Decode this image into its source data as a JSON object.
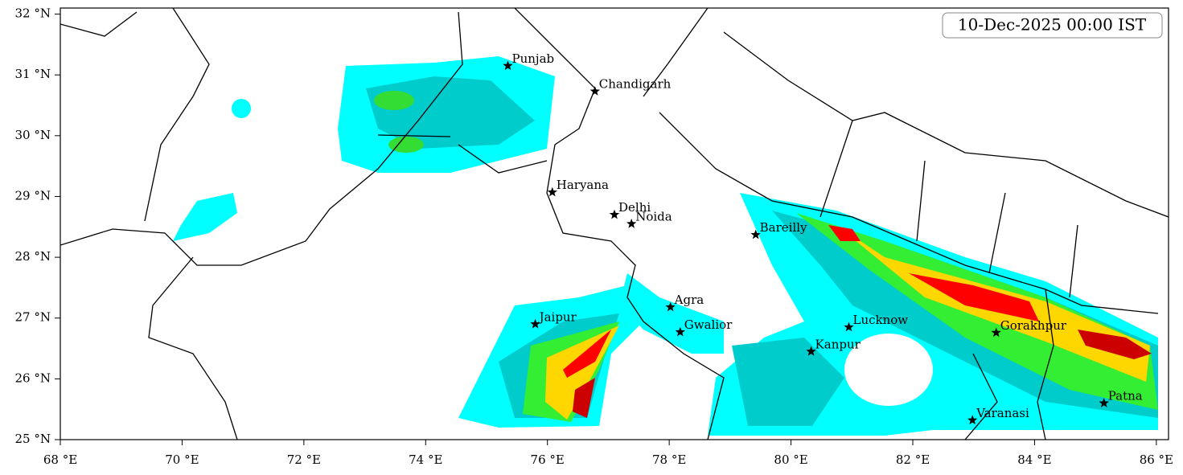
{
  "map": {
    "date_label": "10-Dec-2025 00:00 IST",
    "xlim": [
      68,
      86.2
    ],
    "ylim": [
      25,
      32.1
    ],
    "xticks": [
      {
        "value": 68,
        "label": "68 °E"
      },
      {
        "value": 70,
        "label": "70 °E"
      },
      {
        "value": 72,
        "label": "72 °E"
      },
      {
        "value": 74,
        "label": "74 °E"
      },
      {
        "value": 76,
        "label": "76 °E"
      },
      {
        "value": 78,
        "label": "78 °E"
      },
      {
        "value": 80,
        "label": "80 °E"
      },
      {
        "value": 82,
        "label": "82 °E"
      },
      {
        "value": 84,
        "label": "84 °E"
      },
      {
        "value": 86,
        "label": "86 °E"
      }
    ],
    "yticks": [
      {
        "value": 25,
        "label": "25 °N"
      },
      {
        "value": 26,
        "label": "26 °N"
      },
      {
        "value": 27,
        "label": "27 °N"
      },
      {
        "value": 28,
        "label": "28 °N"
      },
      {
        "value": 29,
        "label": "29 °N"
      },
      {
        "value": 30,
        "label": "30 °N"
      },
      {
        "value": 31,
        "label": "31 °N"
      },
      {
        "value": 32,
        "label": "32 °N"
      }
    ],
    "cities": [
      {
        "name": "Punjab",
        "lon": 75.35,
        "lat": 31.15
      },
      {
        "name": "Chandigarh",
        "lon": 76.78,
        "lat": 30.73
      },
      {
        "name": "Haryana",
        "lon": 76.08,
        "lat": 29.07
      },
      {
        "name": "Delhi",
        "lon": 77.1,
        "lat": 28.7
      },
      {
        "name": "Noida",
        "lon": 77.38,
        "lat": 28.55
      },
      {
        "name": "Bareilly",
        "lon": 79.42,
        "lat": 28.37
      },
      {
        "name": "Agra",
        "lon": 78.02,
        "lat": 27.18
      },
      {
        "name": "Jaipur",
        "lon": 75.8,
        "lat": 26.9
      },
      {
        "name": "Gwalior",
        "lon": 78.18,
        "lat": 26.77
      },
      {
        "name": "Lucknow",
        "lon": 80.95,
        "lat": 26.85
      },
      {
        "name": "Kanpur",
        "lon": 80.33,
        "lat": 26.45
      },
      {
        "name": "Gorakhpur",
        "lon": 83.37,
        "lat": 26.76
      },
      {
        "name": "Varanasi",
        "lon": 82.98,
        "lat": 25.32
      },
      {
        "name": "Patna",
        "lon": 85.14,
        "lat": 25.6
      }
    ]
  }
}
